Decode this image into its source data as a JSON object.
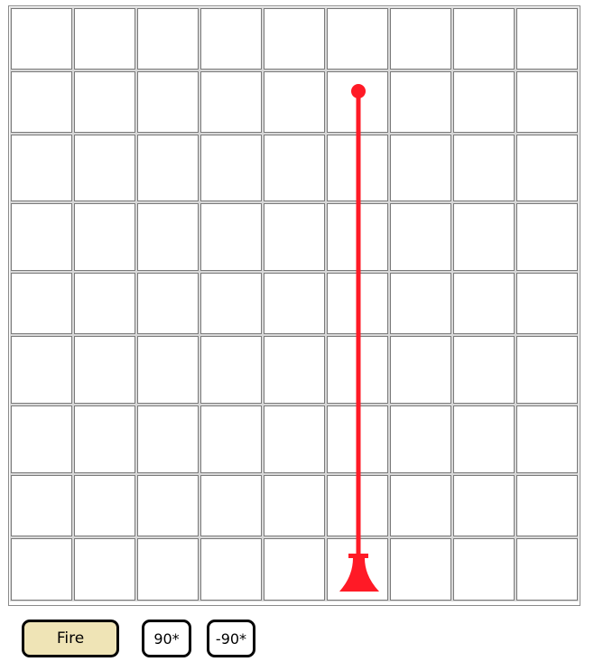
{
  "board": {
    "columns": 9,
    "rows": 9
  },
  "laser": {
    "color": "#ff1a26",
    "emitter": {
      "col": 5,
      "row": 8,
      "facing": "up"
    },
    "target": {
      "col": 5,
      "row": 1
    }
  },
  "controls": {
    "fire_label": "Fire",
    "rotate_cw_label": "90*",
    "rotate_ccw_label": "-90*"
  },
  "colors": {
    "fire_button_bg": "#efe4b6",
    "grid_line": "#7a7a7a"
  }
}
